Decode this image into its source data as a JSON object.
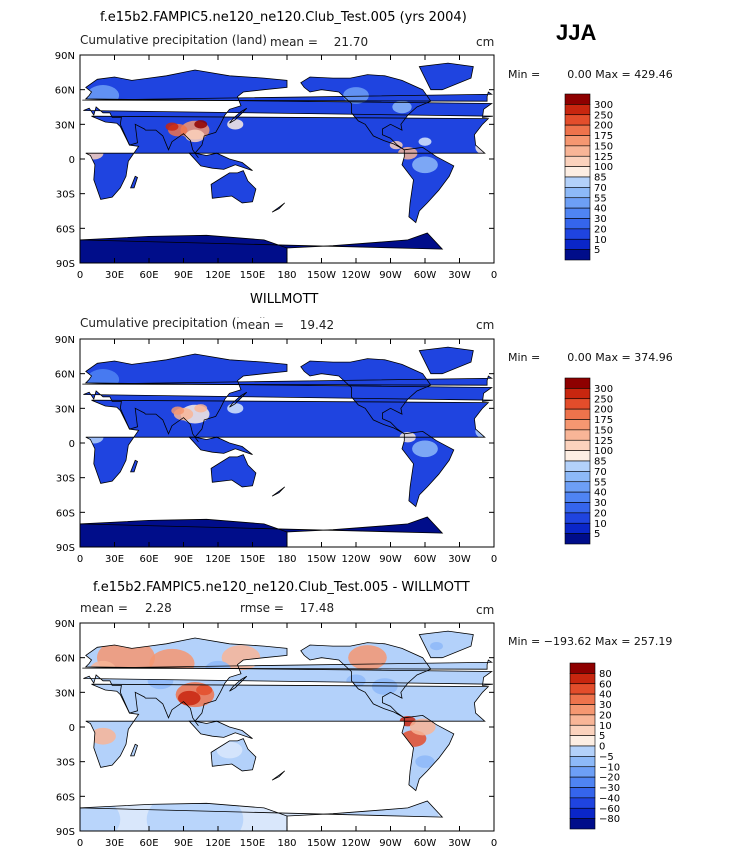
{
  "season": "JJA",
  "colors": {
    "abs_scale": [
      "#000d8a",
      "#0a26c8",
      "#1f44e0",
      "#3565ec",
      "#4f84f3",
      "#6d9ff6",
      "#8db9f8",
      "#b3d1fa",
      "#d9e7fb",
      "#fdeee3",
      "#fbd2bd",
      "#f8b597",
      "#f59771",
      "#ee734c",
      "#e34d2b",
      "#c8260f",
      "#8e0000"
    ],
    "diff_scale": [
      "#000d8a",
      "#0a26c8",
      "#1f44e0",
      "#3565ec",
      "#4f84f3",
      "#6d9ff6",
      "#8db9f8",
      "#b3d1fa",
      "#d9e7fb",
      "#fdeee3",
      "#fbd2bd",
      "#f8b597",
      "#f59771",
      "#ee734c",
      "#e34d2b",
      "#c8260f",
      "#8e0000"
    ],
    "ocean": "#ffffff"
  },
  "lat_labels": [
    "90N",
    "60N",
    "30N",
    "0",
    "30S",
    "60S",
    "90S"
  ],
  "lon_labels": [
    "0",
    "30E",
    "60E",
    "90E",
    "120E",
    "150E",
    "180",
    "150W",
    "120W",
    "90W",
    "60W",
    "30W",
    "0"
  ],
  "panels": [
    {
      "title": "f.e15b2.FAMPIC5.ne120_ne120.Club_Test.005 (yrs 2004)",
      "left_label": "Cumulative precipitation (land)",
      "mean_label": "mean =",
      "mean_value": "21.70",
      "units": "cm",
      "min_label": "Min =",
      "min_value": "0.00",
      "max_label": "Max =",
      "max_value": "429.46",
      "colorbar": [
        "300",
        "250",
        "200",
        "175",
        "150",
        "125",
        "100",
        "85",
        "70",
        "55",
        "40",
        "30",
        "20",
        "10",
        "5"
      ],
      "field": "model"
    },
    {
      "title": "WILLMOTT",
      "left_label": "Cumulative precipitation (land)",
      "mean_label": "mean =",
      "mean_value": "19.42",
      "units": "cm",
      "min_label": "Min =",
      "min_value": "0.00",
      "max_label": "Max =",
      "max_value": "374.96",
      "colorbar": [
        "300",
        "250",
        "200",
        "175",
        "150",
        "125",
        "100",
        "85",
        "70",
        "55",
        "40",
        "30",
        "20",
        "10",
        "5"
      ],
      "field": "obs"
    },
    {
      "title": "f.e15b2.FAMPIC5.ne120_ne120.Club_Test.005 - WILLMOTT",
      "left_label": "mean =",
      "mean_label": "",
      "mean_value": "2.28",
      "rmse_label": "rmse =",
      "rmse_value": "17.48",
      "units": "cm",
      "min_label": "Min =",
      "min_value": "−193.62",
      "max_label": "Max =",
      "max_value": "257.19",
      "colorbar": [
        "80",
        "60",
        "40",
        "30",
        "20",
        "10",
        "5",
        "0",
        "−5",
        "−10",
        "−20",
        "−30",
        "−40",
        "−60",
        "−80"
      ],
      "field": "diff"
    }
  ]
}
